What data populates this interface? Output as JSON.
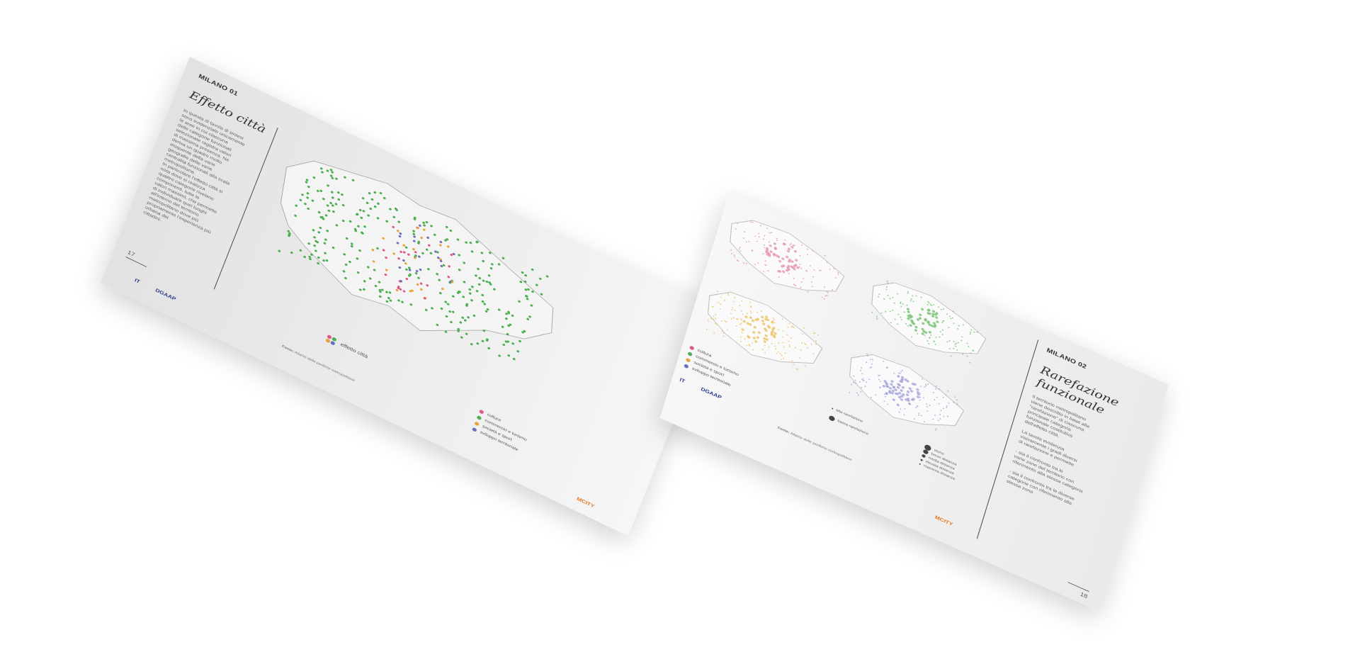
{
  "left_page": {
    "section": "MILANO 01",
    "title": "Effetto città",
    "page_number": "17",
    "body_lines": [
      "In questa di tavola di sintesi",
      "sono evidenziate unicamente",
      "le aree in cui ciascuna",
      "delle categorie funzionali",
      "selezionate registra valori",
      "di massima presenza. Ne",
      "deriva un quadro molto",
      "eloquente della varie",
      "geografie delle varie",
      "centralità funzionali alla scala",
      "metropolitana.",
      "In particolare l'effetto città si",
      "nota dove si realizza",
      "quattro categorie rivelano",
      "componenti, tutte le",
      "valori massimi, che permette",
      "di individuare quei luoghi",
      "all'interno del territorio",
      "metropolitano dove più",
      "propriamente l'esperienza più",
      "urbana dei",
      "cittadini."
    ],
    "effect_label": "effetto città",
    "legend": [
      {
        "label": "cultura",
        "color": "#e0578a"
      },
      {
        "label": "commercio e turismo",
        "color": "#4caf50"
      },
      {
        "label": "società e sport",
        "color": "#e8a33a"
      },
      {
        "label": "sviluppo territoriale",
        "color": "#6b6fbf"
      }
    ],
    "source_prefix": "Fonte:",
    "source_text": "Atlante delle periferie metropolitane",
    "logo_a": "IT",
    "logo_b": "DGAAP",
    "brand": "MCITY"
  },
  "right_page": {
    "section": "MILANO 02",
    "title_line1": "Rarefazione",
    "title_line2": "funzionale",
    "page_number": "18",
    "body_lines": [
      "Il territorio metropolitano",
      "viene descritto in base alla",
      "\"rarefazione\" di ciascuna",
      "principale categoria",
      "funzionale costitutiva",
      "dell'effetto città.",
      "",
      "La tavola evidenzia",
      "visivamente i gradi diversi",
      "di rarefazione e permette",
      "",
      "- sia il confronto tra le",
      "varie zone del territorio con",
      "riferimento alla stessa categoria",
      "",
      "- sia il confronto tra le diverse",
      "categorie con riferimento alla",
      "stessa zona"
    ],
    "legend": [
      {
        "label": "cultura",
        "color": "#e0578a"
      },
      {
        "label": "commercio e turismo",
        "color": "#4caf50"
      },
      {
        "label": "società e sport",
        "color": "#e8a33a"
      },
      {
        "label": "sviluppo territoriale",
        "color": "#6b6fbf"
      }
    ],
    "rarefaction_high": "alta rarefazione",
    "rarefaction_low": "bassa rarefazione",
    "scale_legend": [
      "vicino",
      "breve distanza",
      "media distanza",
      "elevata distanza",
      "massima distanza"
    ],
    "source_prefix": "Fonte:",
    "source_text": "Atlante delle periferie metropolitane",
    "logo_a": "IT",
    "logo_b": "DGAAP",
    "brand": "MCITY"
  },
  "colors": {
    "cultura": "#e0578a",
    "commercio": "#4caf50",
    "societa": "#e8a33a",
    "sviluppo": "#6b6fbf",
    "pink_map": "#e89ab5",
    "green_map": "#7cc47a",
    "yellow_map": "#ecc46a",
    "blue_map": "#a9a8dc"
  }
}
